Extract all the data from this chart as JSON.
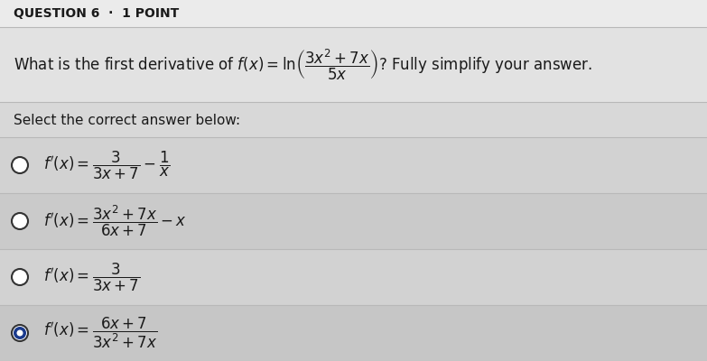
{
  "bg_top": "#e8e8e8",
  "bg_question": "#e0e0e0",
  "bg_select_label": "#d8d8d8",
  "bg_row_light": "#d4d4d4",
  "bg_row_dark": "#c8c8c8",
  "separator_color": "#b0b0b0",
  "text_color": "#1a1a1a",
  "selected_fill": "#1a3a8c",
  "header_text": "QUESTION 6  ·  1 POINT",
  "question_prefix": "What is the first derivative of ",
  "question_suffix": "? Fully simplify your answer.",
  "select_label": "Select the correct answer below:",
  "answers": [
    {
      "math": "f'(x) = \\dfrac{3}{3x+7} - \\dfrac{1}{x}",
      "selected": false
    },
    {
      "math": "f'(x) = \\dfrac{3x^2+7x}{6x+7} - x",
      "selected": false
    },
    {
      "math": "f'(x) = \\dfrac{3}{3x+7}",
      "selected": false
    },
    {
      "math": "f'(x) = \\dfrac{6x+7}{3x^2+7x}",
      "selected": true
    }
  ]
}
